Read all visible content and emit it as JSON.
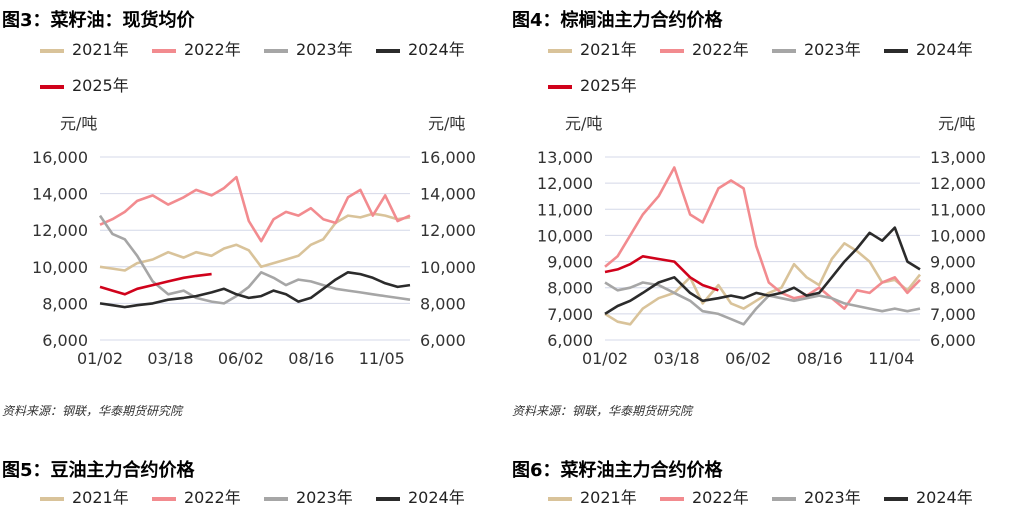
{
  "colors": {
    "y2021": "#d9c39a",
    "y2022": "#f28b8f",
    "y2023": "#a6a6a6",
    "y2024": "#2b2b2b",
    "y2025": "#d0021b",
    "grid": "#d4d8e8"
  },
  "fig3": {
    "title": "图3：菜籽油：现货均价",
    "source": "资料来源：钢联，华泰期货研究院",
    "legend": [
      "2021年",
      "2022年",
      "2023年",
      "2024年",
      "2025年"
    ],
    "unit_left": "元/吨",
    "unit_right": "元/吨"
  },
  "fig4": {
    "title": "图4：棕榈油主力合约价格",
    "source": "资料来源：钢联，华泰期货研究院",
    "legend": [
      "2021年",
      "2022年",
      "2023年",
      "2024年",
      "2025年"
    ],
    "unit_left": "元/吨",
    "unit_right": "元/吨"
  },
  "fig5": {
    "title": "图5：豆油主力合约价格",
    "legend_partial": [
      "2021年",
      "2022年",
      "2023年",
      "2024年"
    ]
  },
  "fig6": {
    "title": "图6：菜籽油主力合约价格",
    "legend_partial": [
      "2021年",
      "2022年",
      "2023年",
      "2024年"
    ]
  },
  "chart_data": [
    {
      "type": "line",
      "title": "图3：菜籽油：现货均价",
      "ylabel": "元/吨",
      "y2label": "元/吨",
      "ylim": [
        6000,
        16000
      ],
      "yticks": [
        "6,000",
        "8,000",
        "10,000",
        "12,000",
        "14,000",
        "16,000"
      ],
      "xticks": [
        "01/02",
        "03/18",
        "06/02",
        "08/16",
        "11/05"
      ],
      "x_range": [
        0,
        1
      ],
      "grid": "horizontal",
      "legend_position": "top",
      "series": [
        {
          "name": "2021年",
          "x": [
            0,
            0.04,
            0.08,
            0.12,
            0.17,
            0.22,
            0.27,
            0.31,
            0.36,
            0.4,
            0.44,
            0.48,
            0.52,
            0.56,
            0.6,
            0.64,
            0.68,
            0.72,
            0.76,
            0.8,
            0.84,
            0.88,
            0.92,
            0.96,
            1.0
          ],
          "values": [
            10000,
            9900,
            9800,
            10200,
            10400,
            10800,
            10500,
            10800,
            10600,
            11000,
            11200,
            10900,
            10000,
            10200,
            10400,
            10600,
            11200,
            11500,
            12400,
            12800,
            12700,
            12900,
            12800,
            12600,
            12700
          ]
        },
        {
          "name": "2022年",
          "x": [
            0,
            0.04,
            0.08,
            0.12,
            0.17,
            0.22,
            0.27,
            0.31,
            0.36,
            0.4,
            0.44,
            0.48,
            0.52,
            0.56,
            0.6,
            0.64,
            0.68,
            0.72,
            0.76,
            0.8,
            0.84,
            0.88,
            0.92,
            0.96,
            1.0
          ],
          "values": [
            12300,
            12600,
            13000,
            13600,
            13900,
            13400,
            13800,
            14200,
            13900,
            14300,
            14900,
            12500,
            11400,
            12600,
            13000,
            12800,
            13200,
            12600,
            12400,
            13800,
            14200,
            12800,
            13900,
            12500,
            12800
          ]
        },
        {
          "name": "2023年",
          "x": [
            0,
            0.04,
            0.08,
            0.12,
            0.17,
            0.22,
            0.27,
            0.31,
            0.36,
            0.4,
            0.44,
            0.48,
            0.52,
            0.56,
            0.6,
            0.64,
            0.68,
            0.72,
            0.76,
            0.8,
            0.84,
            0.88,
            0.92,
            0.96,
            1.0
          ],
          "values": [
            12800,
            11800,
            11500,
            10600,
            9200,
            8500,
            8700,
            8300,
            8100,
            8000,
            8400,
            8900,
            9700,
            9400,
            9000,
            9300,
            9200,
            9000,
            8800,
            8700,
            8600,
            8500,
            8400,
            8300,
            8200
          ]
        },
        {
          "name": "2024年",
          "x": [
            0,
            0.04,
            0.08,
            0.12,
            0.17,
            0.22,
            0.27,
            0.31,
            0.36,
            0.4,
            0.44,
            0.48,
            0.52,
            0.56,
            0.6,
            0.64,
            0.68,
            0.72,
            0.76,
            0.8,
            0.84,
            0.88,
            0.92,
            0.96,
            1.0
          ],
          "values": [
            8000,
            7900,
            7800,
            7900,
            8000,
            8200,
            8300,
            8400,
            8600,
            8800,
            8500,
            8300,
            8400,
            8700,
            8500,
            8100,
            8300,
            8800,
            9300,
            9700,
            9600,
            9400,
            9100,
            8900,
            9000
          ]
        },
        {
          "name": "2025年",
          "x": [
            0,
            0.04,
            0.08,
            0.12,
            0.17,
            0.22,
            0.27,
            0.31,
            0.36
          ],
          "values": [
            8900,
            8700,
            8500,
            8800,
            9000,
            9200,
            9400,
            9500,
            9600
          ]
        }
      ]
    },
    {
      "type": "line",
      "title": "图4：棕榈油主力合约价格",
      "ylabel": "元/吨",
      "y2label": "元/吨",
      "ylim": [
        6000,
        13000
      ],
      "yticks": [
        "6,000",
        "7,000",
        "8,000",
        "9,000",
        "10,000",
        "11,000",
        "12,000",
        "13,000"
      ],
      "xticks": [
        "01/02",
        "03/18",
        "06/02",
        "08/16",
        "11/04"
      ],
      "x_range": [
        0,
        1
      ],
      "grid": "horizontal",
      "legend_position": "top",
      "series": [
        {
          "name": "2021年",
          "x": [
            0,
            0.04,
            0.08,
            0.12,
            0.17,
            0.22,
            0.27,
            0.31,
            0.36,
            0.4,
            0.44,
            0.48,
            0.52,
            0.56,
            0.6,
            0.64,
            0.68,
            0.72,
            0.76,
            0.8,
            0.84,
            0.88,
            0.92,
            0.96,
            1.0
          ],
          "values": [
            7000,
            6700,
            6600,
            7200,
            7600,
            7800,
            8400,
            7400,
            8100,
            7400,
            7200,
            7500,
            7800,
            8000,
            8900,
            8400,
            8100,
            9100,
            9700,
            9400,
            9000,
            8200,
            8300,
            7900,
            8500
          ]
        },
        {
          "name": "2022年",
          "x": [
            0,
            0.04,
            0.08,
            0.12,
            0.17,
            0.22,
            0.27,
            0.31,
            0.36,
            0.4,
            0.44,
            0.48,
            0.52,
            0.56,
            0.6,
            0.64,
            0.68,
            0.72,
            0.76,
            0.8,
            0.84,
            0.88,
            0.92,
            0.96,
            1.0
          ],
          "values": [
            8800,
            9200,
            10000,
            10800,
            11500,
            12600,
            10800,
            10500,
            11800,
            12100,
            11800,
            9600,
            8200,
            7800,
            7600,
            7700,
            8000,
            7600,
            7200,
            7900,
            7800,
            8200,
            8400,
            7800,
            8300
          ]
        },
        {
          "name": "2023年",
          "x": [
            0,
            0.04,
            0.08,
            0.12,
            0.17,
            0.22,
            0.27,
            0.31,
            0.36,
            0.4,
            0.44,
            0.48,
            0.52,
            0.56,
            0.6,
            0.64,
            0.68,
            0.72,
            0.76,
            0.8,
            0.84,
            0.88,
            0.92,
            0.96,
            1.0
          ],
          "values": [
            8200,
            7900,
            8000,
            8200,
            8100,
            7800,
            7500,
            7100,
            7000,
            6800,
            6600,
            7200,
            7700,
            7600,
            7500,
            7600,
            7700,
            7600,
            7400,
            7300,
            7200,
            7100,
            7200,
            7100,
            7200
          ]
        },
        {
          "name": "2024年",
          "x": [
            0,
            0.04,
            0.08,
            0.12,
            0.17,
            0.22,
            0.27,
            0.31,
            0.36,
            0.4,
            0.44,
            0.48,
            0.52,
            0.56,
            0.6,
            0.64,
            0.68,
            0.72,
            0.76,
            0.8,
            0.84,
            0.88,
            0.92,
            0.96,
            1.0
          ],
          "values": [
            7000,
            7300,
            7500,
            7800,
            8200,
            8400,
            7800,
            7500,
            7600,
            7700,
            7600,
            7800,
            7700,
            7800,
            8000,
            7700,
            7800,
            8400,
            9000,
            9500,
            10100,
            9800,
            10300,
            9000,
            8700
          ]
        },
        {
          "name": "2025年",
          "x": [
            0,
            0.04,
            0.08,
            0.12,
            0.17,
            0.22,
            0.27,
            0.31,
            0.36
          ],
          "values": [
            8600,
            8700,
            8900,
            9200,
            9100,
            9000,
            8400,
            8100,
            7900
          ]
        }
      ]
    }
  ]
}
